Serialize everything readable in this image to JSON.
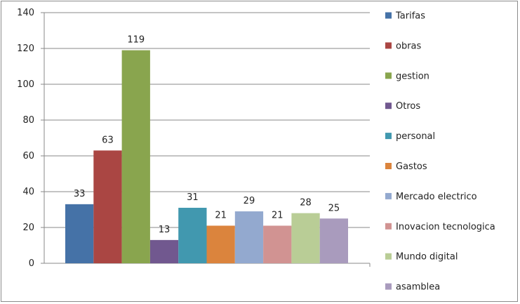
{
  "chart_data": {
    "type": "bar",
    "title": "",
    "xlabel": "",
    "ylabel": "",
    "ylim": [
      0,
      140
    ],
    "yticks": [
      0,
      20,
      40,
      60,
      80,
      100,
      120,
      140
    ],
    "grid": true,
    "legend_position": "right",
    "series": [
      {
        "name": "Tarifas",
        "value": 33,
        "color": "#4572A7"
      },
      {
        "name": "obras",
        "value": 63,
        "color": "#AA4643"
      },
      {
        "name": "gestion",
        "value": 119,
        "color": "#89A54E"
      },
      {
        "name": "Otros",
        "value": 13,
        "color": "#71588F"
      },
      {
        "name": "personal",
        "value": 31,
        "color": "#4198AF"
      },
      {
        "name": "Gastos",
        "value": 21,
        "color": "#DB843D"
      },
      {
        "name": "Mercado electrico",
        "value": 29,
        "color": "#93A9CF"
      },
      {
        "name": "Inovacion tecnologica",
        "value": 21,
        "color": "#D19392"
      },
      {
        "name": "Mundo digital",
        "value": 28,
        "color": "#B9CD96"
      },
      {
        "name": "asamblea",
        "value": 25,
        "color": "#A99BBD"
      }
    ]
  }
}
